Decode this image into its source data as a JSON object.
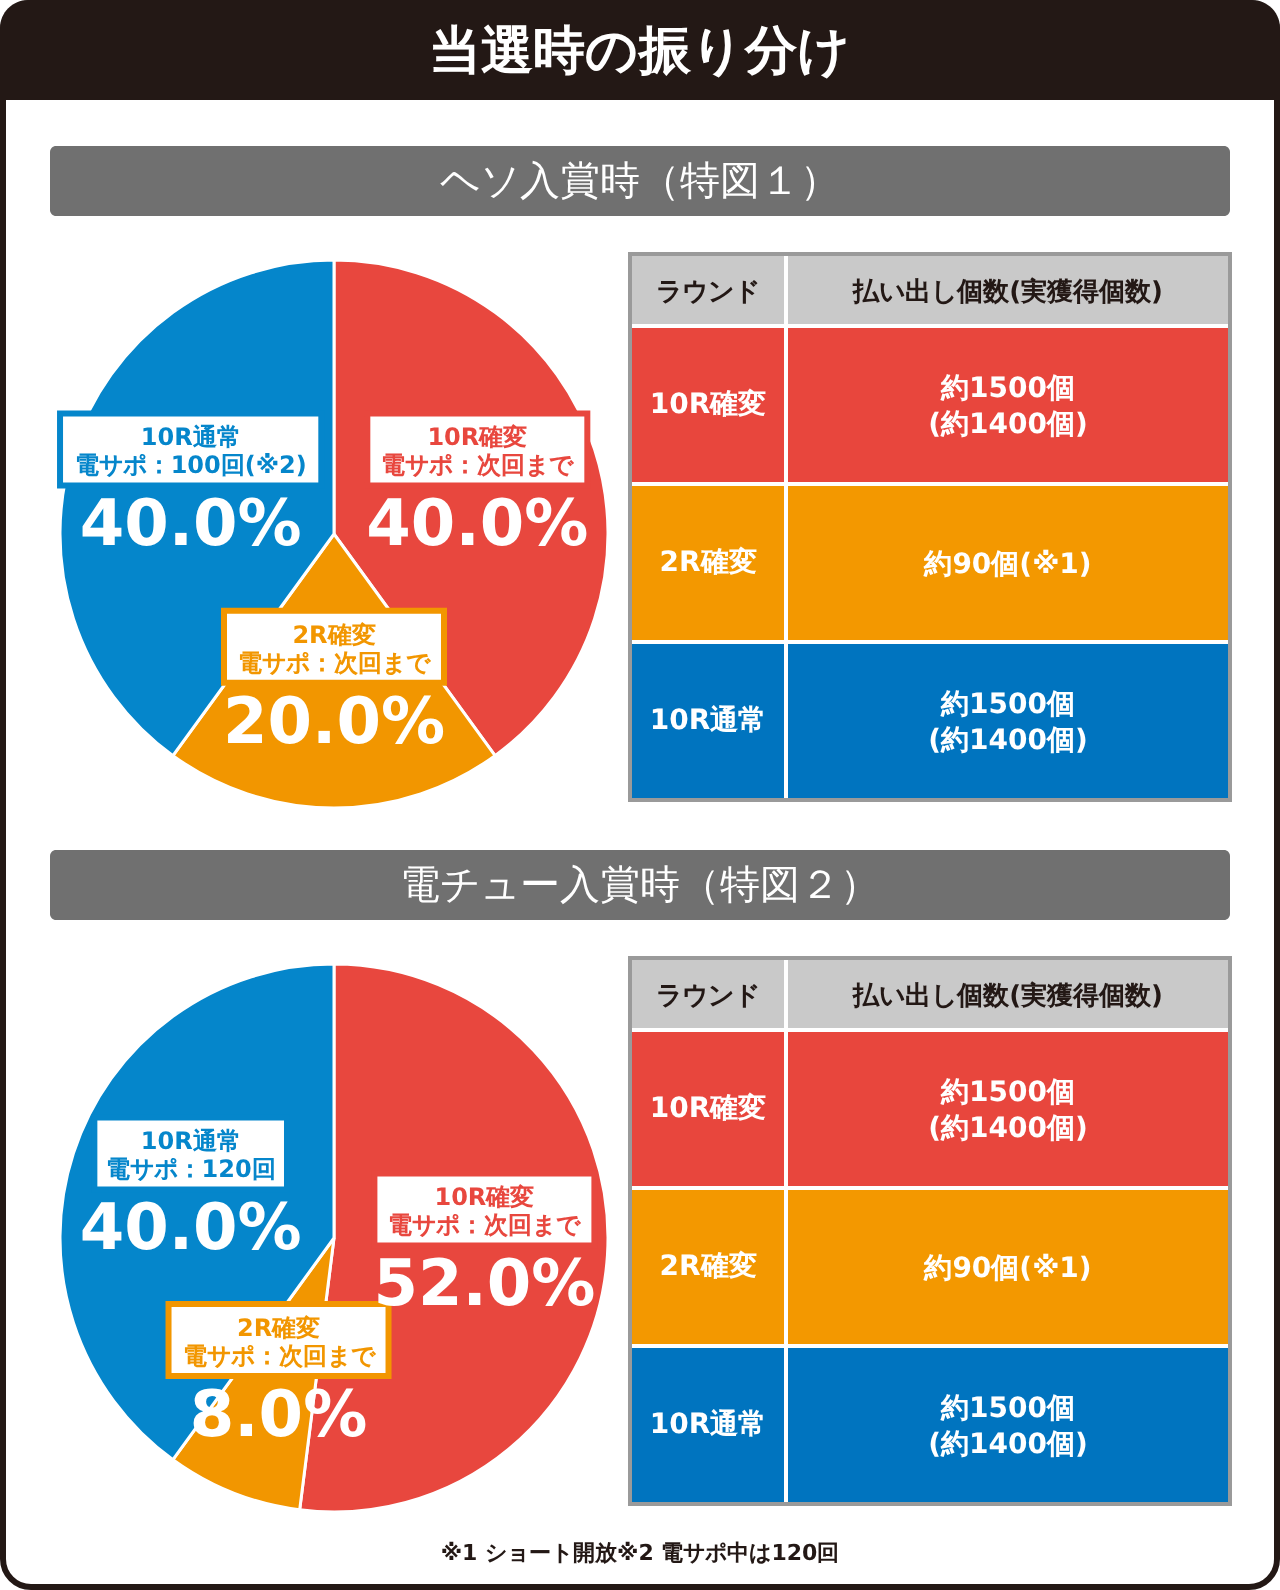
{
  "chart_data": [
    {
      "type": "other",
      "title": "当選時の振り分け",
      "annotations": [
        "※1 ショート開放※2 電サポ中は120回"
      ]
    },
    {
      "type": "pie",
      "title": "ヘソ入賞時（特図１）",
      "categories": [
        "10R確変",
        "2R確変",
        "10R通常"
      ],
      "values": [
        40,
        20,
        40
      ],
      "colors": [
        "#e8473e",
        "#f29600",
        "#0586cb"
      ],
      "value_labels": [
        "40.0%",
        "20.0%",
        "40.0%"
      ],
      "annotations": [
        "電サポ：次回まで",
        "電サポ：次回まで",
        "電サポ：100回(※2)"
      ]
    },
    {
      "type": "other",
      "categories": [
        "10R確変",
        "2R確変",
        "10R通常"
      ],
      "colors": [
        "#e8463d",
        "#f39800",
        "#0074bf"
      ],
      "value_labels": [
        "約1500個\n(約1400個)",
        "約90個(※1)",
        "約1500個\n(約1400個)"
      ],
      "annotations": [
        "ラウンド",
        "払い出し個数(実獲得個数)"
      ]
    },
    {
      "type": "pie",
      "title": "電チュー入賞時（特図２）",
      "categories": [
        "10R確変",
        "2R確変",
        "10R通常"
      ],
      "values": [
        52,
        8,
        40
      ],
      "colors": [
        "#e8473e",
        "#f29600",
        "#0586cb"
      ],
      "value_labels": [
        "52.0%",
        "8.0%",
        "40.0%"
      ],
      "annotations": [
        "電サポ：次回まで",
        "電サポ：次回まで",
        "電サポ：120回"
      ]
    },
    {
      "type": "other",
      "categories": [
        "10R確変",
        "2R確変",
        "10R通常"
      ],
      "colors": [
        "#e8463d",
        "#f39800",
        "#0074bf"
      ],
      "value_labels": [
        "約1500個\n(約1400個)",
        "約90個(※1)",
        "約1500個\n(約1400個)"
      ],
      "annotations": [
        "ラウンド",
        "払い出し個数(実獲得個数)"
      ]
    }
  ]
}
